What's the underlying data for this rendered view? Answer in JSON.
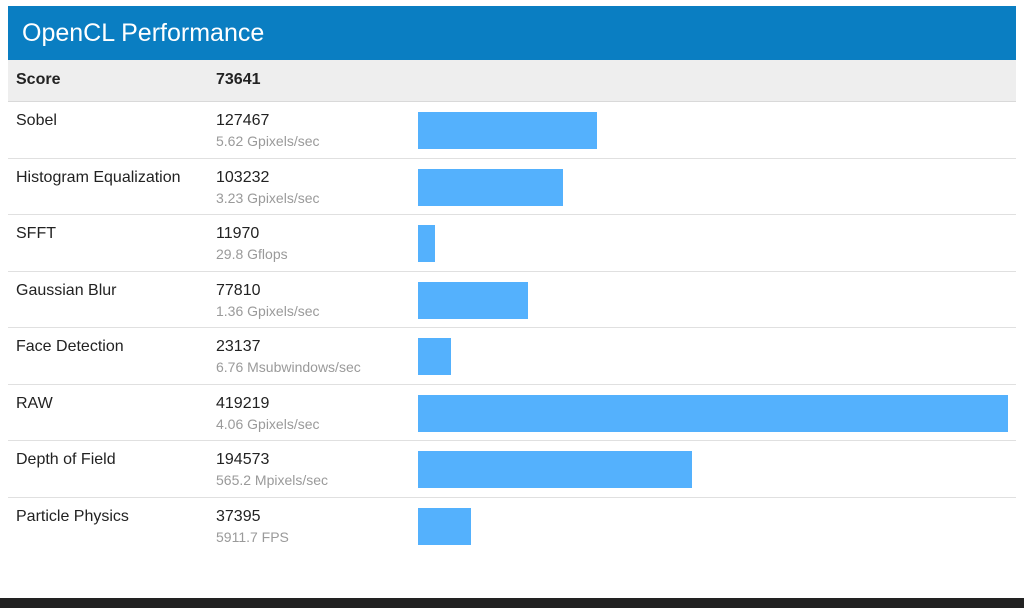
{
  "header": {
    "title": "OpenCL Performance"
  },
  "score": {
    "label": "Score",
    "value": "73641"
  },
  "colors": {
    "header_bg": "#0a7ec2",
    "bar": "#54b1fd",
    "score_row_bg": "#eeeeee"
  },
  "chart_data": {
    "type": "bar",
    "categories": [
      "Sobel",
      "Histogram Equalization",
      "SFFT",
      "Gaussian Blur",
      "Face Detection",
      "RAW",
      "Depth of Field",
      "Particle Physics"
    ],
    "values": [
      127467,
      103232,
      11970,
      77810,
      23137,
      419219,
      194573,
      37395
    ],
    "xlim": [
      0,
      419219
    ],
    "grid": false
  },
  "benchmarks": [
    {
      "name": "Sobel",
      "score": "127467",
      "unit": "5.62 Gpixels/sec"
    },
    {
      "name": "Histogram Equalization",
      "score": "103232",
      "unit": "3.23 Gpixels/sec"
    },
    {
      "name": "SFFT",
      "score": "11970",
      "unit": "29.8 Gflops"
    },
    {
      "name": "Gaussian Blur",
      "score": "77810",
      "unit": "1.36 Gpixels/sec"
    },
    {
      "name": "Face Detection",
      "score": "23137",
      "unit": "6.76 Msubwindows/sec"
    },
    {
      "name": "RAW",
      "score": "419219",
      "unit": "4.06 Gpixels/sec"
    },
    {
      "name": "Depth of Field",
      "score": "194573",
      "unit": "565.2 Mpixels/sec"
    },
    {
      "name": "Particle Physics",
      "score": "37395",
      "unit": "5911.7 FPS"
    }
  ]
}
